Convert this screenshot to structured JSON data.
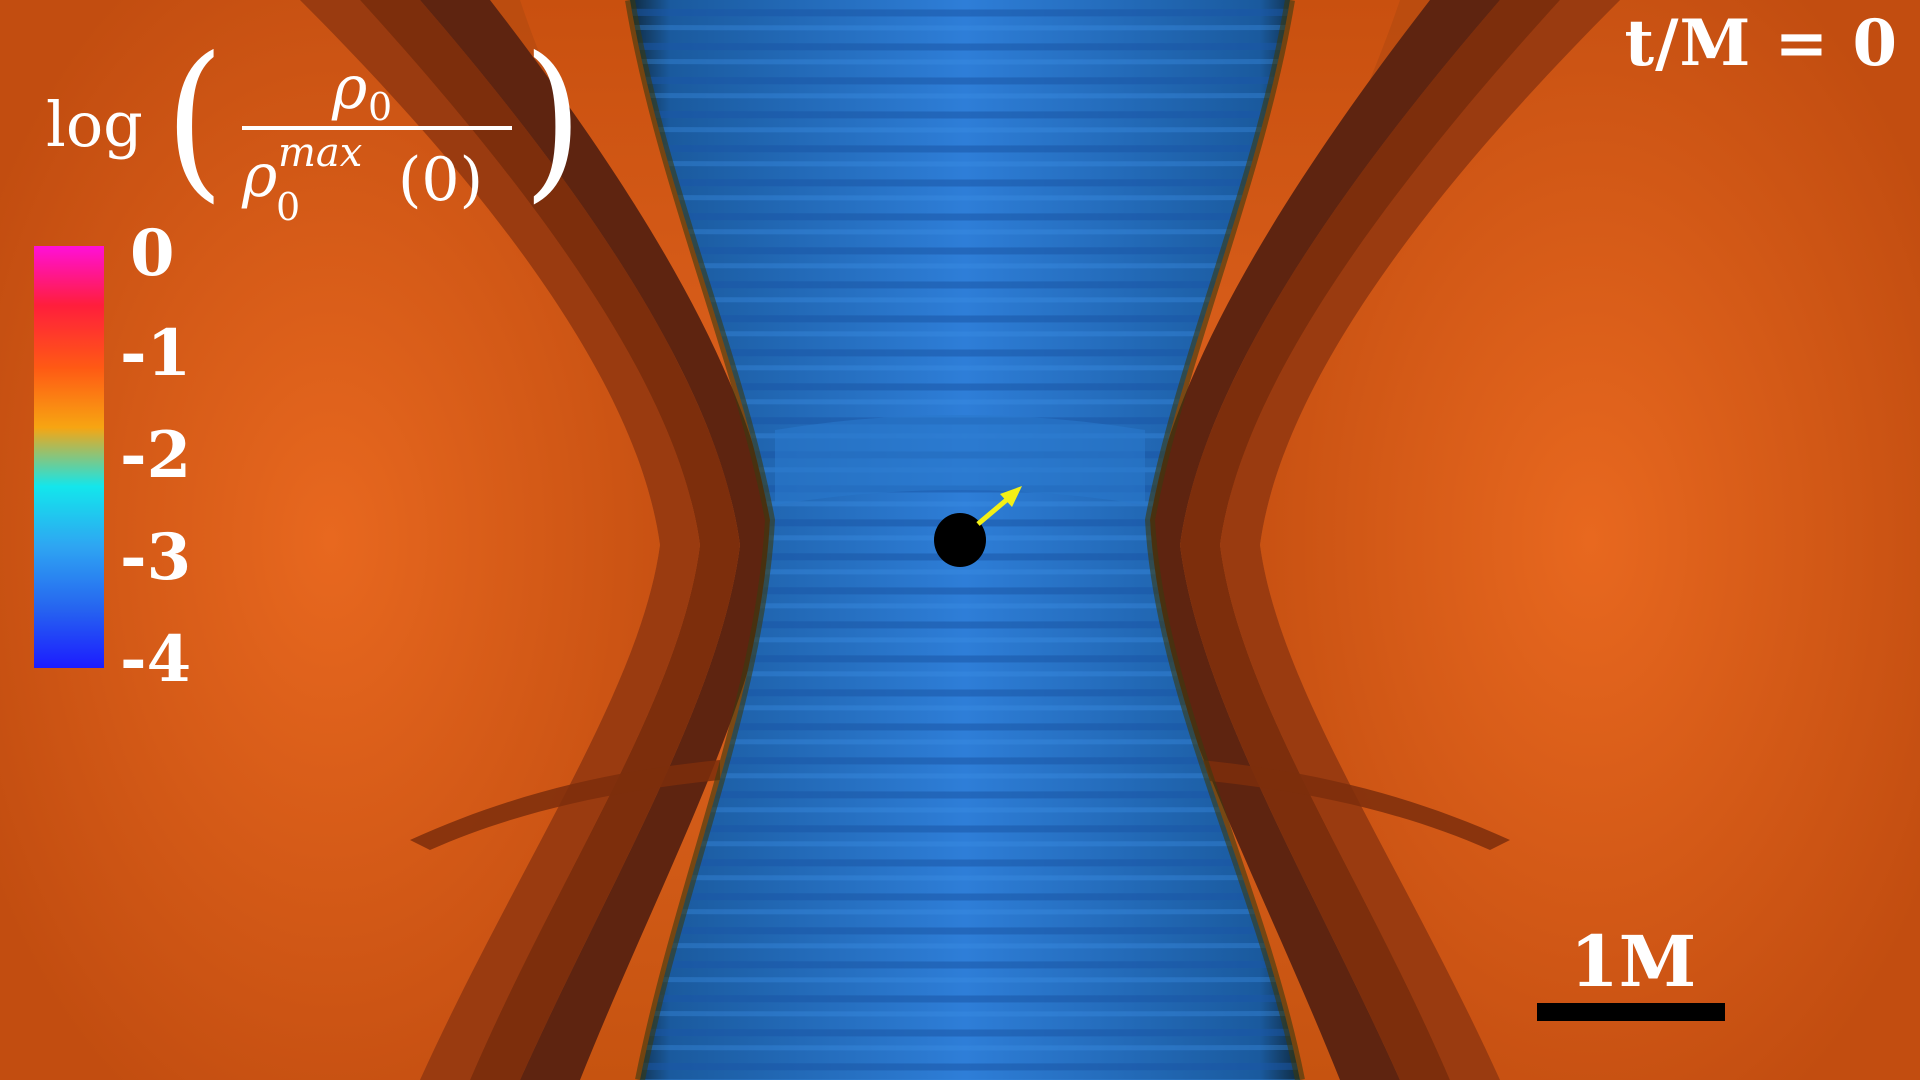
{
  "time_label": "t/M = 0",
  "formula": {
    "log": "log",
    "numerator_symbol": "ρ",
    "numerator_subscript": "0",
    "denominator_symbol": "ρ",
    "denominator_subscript": "0",
    "denominator_superscript": "max",
    "denominator_argument": "(0)",
    "open_paren": "(",
    "close_paren": ")"
  },
  "colorbar": {
    "ticks": [
      "0",
      "-1",
      "-2",
      "-3",
      "-4"
    ],
    "colors_top_to_bottom": [
      "#ff10d8",
      "#ff1e3c",
      "#ff5a14",
      "#f7a512",
      "#13e6ec",
      "#2ea6f2",
      "#2664f0",
      "#1c1cff"
    ]
  },
  "scale_bar": {
    "label": "1M"
  },
  "colors": {
    "disk_orange": "#d65a18",
    "disk_shadow": "#8a3410",
    "funnel_blue": "#1f6fd0",
    "black_hole": "#000000",
    "spin_arrow": "#f4f016",
    "text": "#ffffff"
  },
  "icons": {
    "black_hole": "black-hole-icon",
    "spin_arrow": "spin-arrow-icon"
  }
}
